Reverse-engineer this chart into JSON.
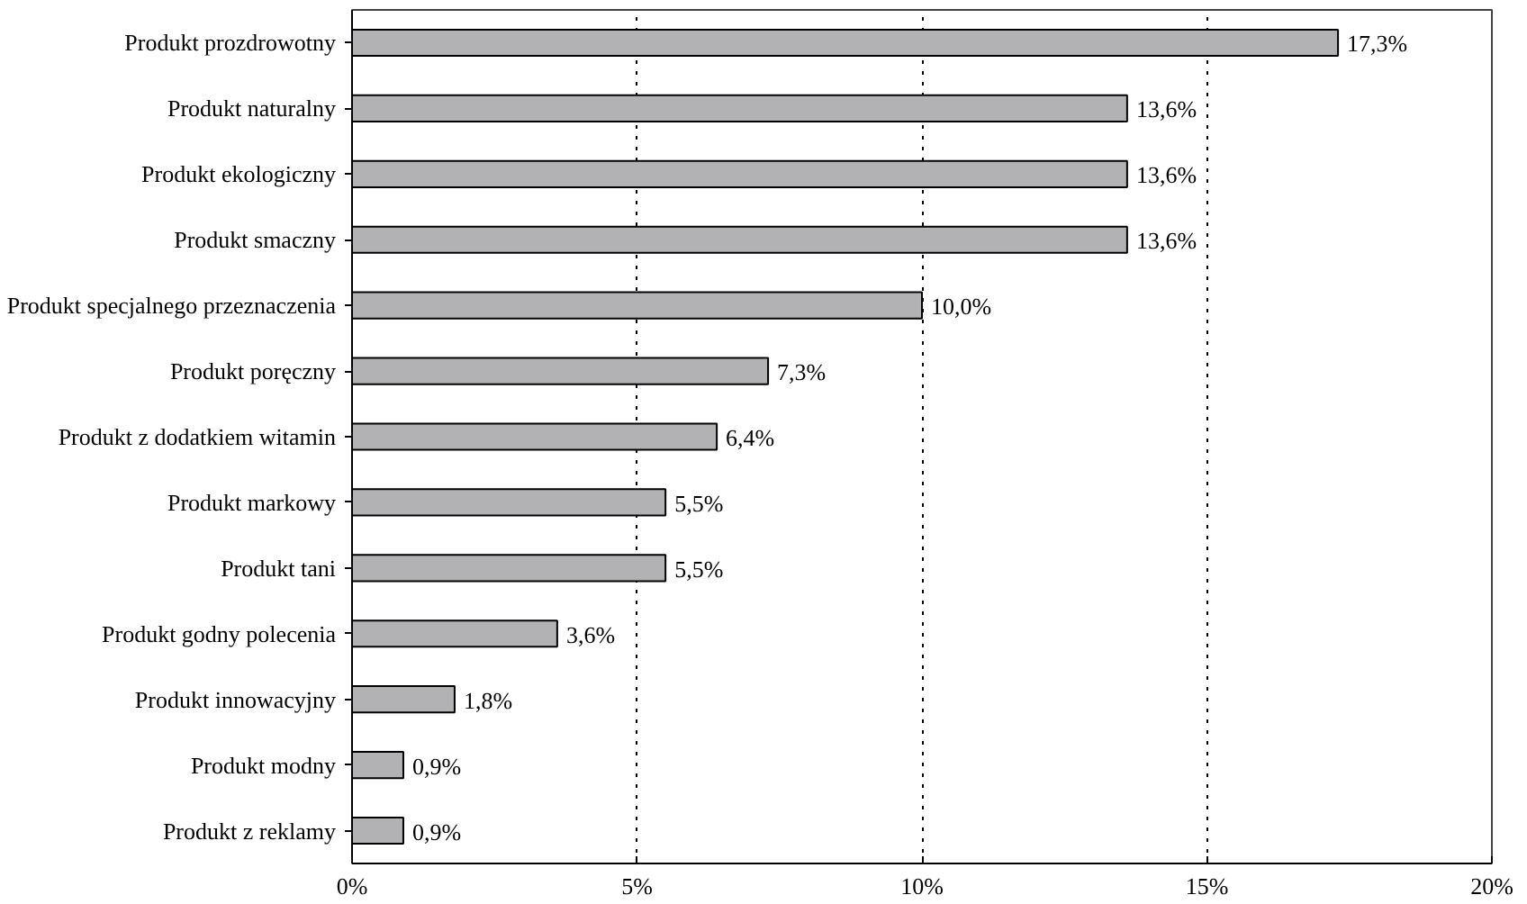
{
  "chart_data": {
    "type": "bar",
    "orientation": "horizontal",
    "categories": [
      "Produkt prozdrowotny",
      "Produkt naturalny",
      "Produkt ekologiczny",
      "Produkt smaczny",
      "Produkt specjalnego przeznaczenia",
      "Produkt poręczny",
      "Produkt z dodatkiem witamin",
      "Produkt markowy",
      "Produkt tani",
      "Produkt godny polecenia",
      "Produkt innowacyjny",
      "Produkt modny",
      "Produkt z reklamy"
    ],
    "values": [
      17.3,
      13.6,
      13.6,
      13.6,
      10.0,
      7.3,
      6.4,
      5.5,
      5.5,
      3.6,
      1.8,
      0.9,
      0.9
    ],
    "value_labels": [
      "17,3%",
      "13,6%",
      "13,6%",
      "13,6%",
      "10,0%",
      "7,3%",
      "6,4%",
      "5,5%",
      "5,5%",
      "3,6%",
      "1,8%",
      "0,9%",
      "0,9%"
    ],
    "color": "#b2b2b4",
    "xlim": [
      0,
      20
    ],
    "xticks": [
      {
        "value": 0,
        "label": "0%"
      },
      {
        "value": 5,
        "label": "5%"
      },
      {
        "value": 10,
        "label": "10%"
      },
      {
        "value": 15,
        "label": "15%"
      },
      {
        "value": 20,
        "label": "20%"
      }
    ],
    "grid": "x",
    "line_style": "dotted"
  }
}
